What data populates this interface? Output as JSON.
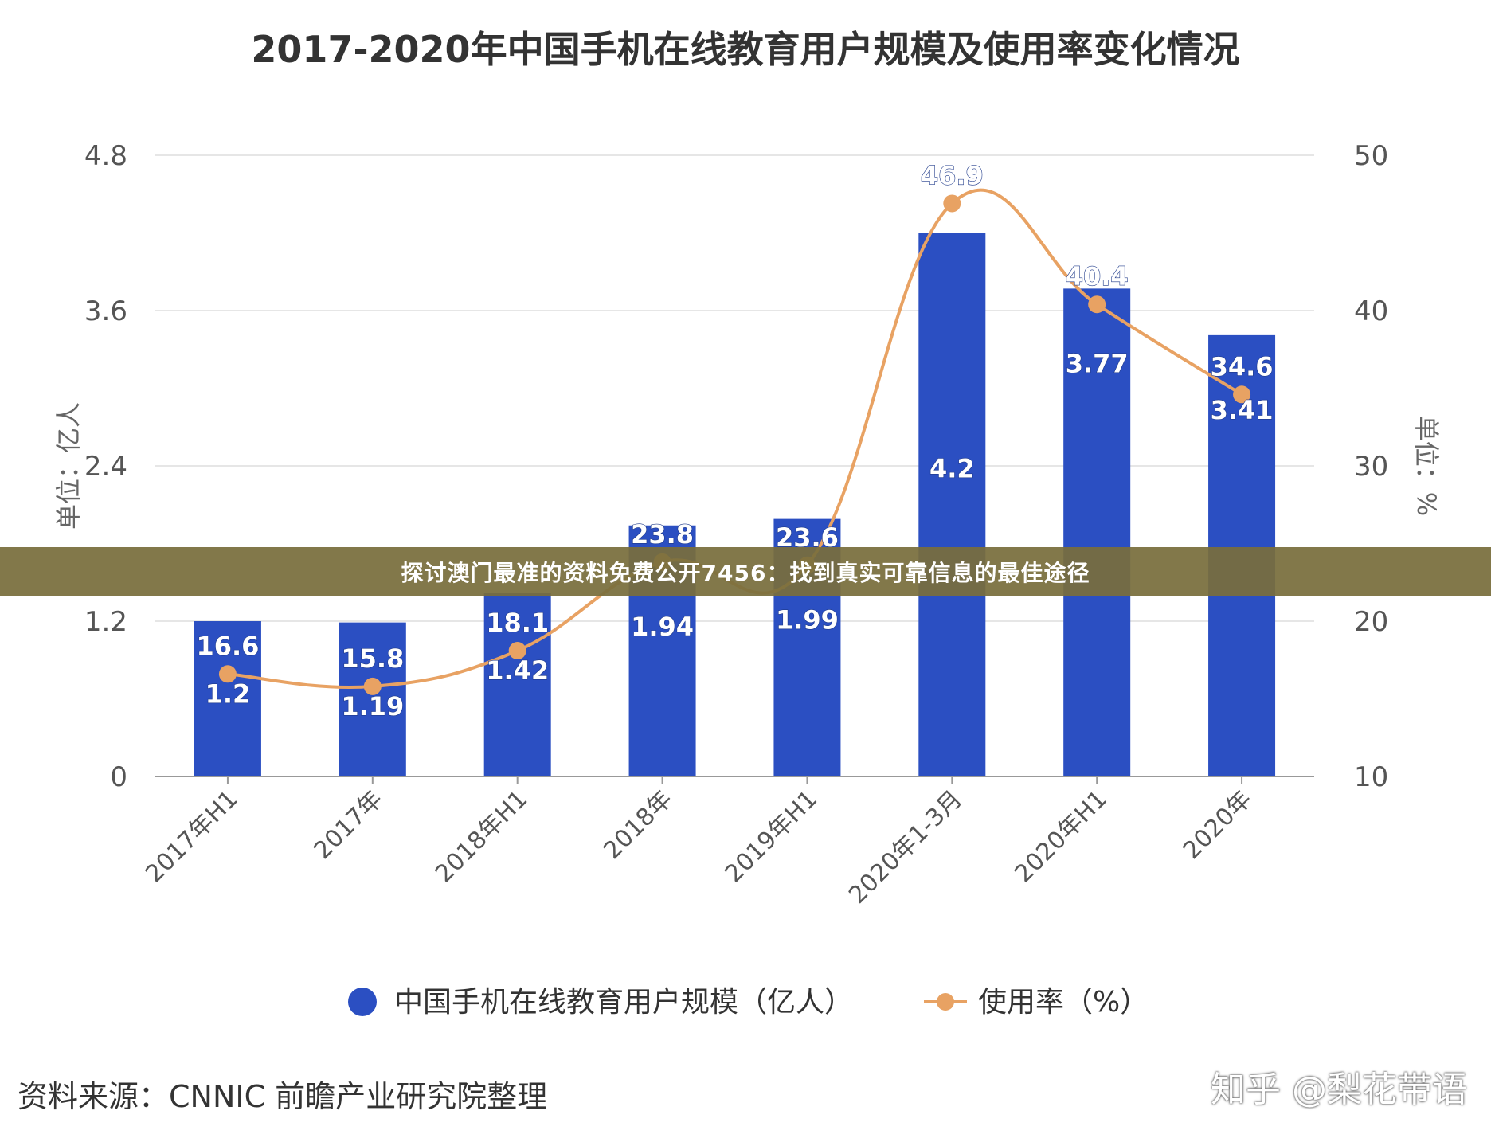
{
  "chart_data": {
    "type": "bar",
    "title": "2017-2020年中国手机在线教育用户规模及使用率变化情况",
    "categories": [
      "2017年H1",
      "2017年",
      "2018年H1",
      "2018年",
      "2019年H1",
      "2020年1-3月",
      "2020年H1",
      "2020年"
    ],
    "series": [
      {
        "name": "中国手机在线教育用户规模（亿人）",
        "type": "bar",
        "axis": "left",
        "color": "#2B4FC2",
        "values": [
          1.2,
          1.19,
          1.42,
          1.94,
          1.99,
          4.2,
          3.77,
          3.41
        ],
        "labels": [
          "1.2",
          "1.19",
          "1.42",
          "1.94",
          "1.99",
          "4.2",
          "3.77",
          "3.41"
        ]
      },
      {
        "name": "使用率（%）",
        "type": "line",
        "axis": "right",
        "color": "#E8A263",
        "values": [
          16.6,
          15.8,
          18.1,
          23.8,
          23.6,
          46.9,
          40.4,
          34.6
        ],
        "labels": [
          "16.6",
          "15.8",
          "18.1",
          "23.8",
          "23.6",
          "46.9",
          "40.4",
          "34.6"
        ]
      }
    ],
    "ylabel": "单位：亿人",
    "ylabel_right": "单位：%",
    "ylim": [
      0,
      4.8
    ],
    "ylim_right": [
      10,
      50
    ],
    "yticks": [
      "0",
      "1.2",
      "2.4",
      "3.6",
      "4.8"
    ],
    "yticks_right": [
      "10",
      "20",
      "30",
      "40",
      "50"
    ],
    "grid": true,
    "legend": "bottom"
  },
  "banner": {
    "text": "探讨澳门最准的资料免费公开7456：找到真实可靠信息的最佳途径"
  },
  "footer": {
    "source": "资料来源：CNNIC 前瞻产业研究院整理",
    "credit": "知乎 @梨花带语"
  }
}
